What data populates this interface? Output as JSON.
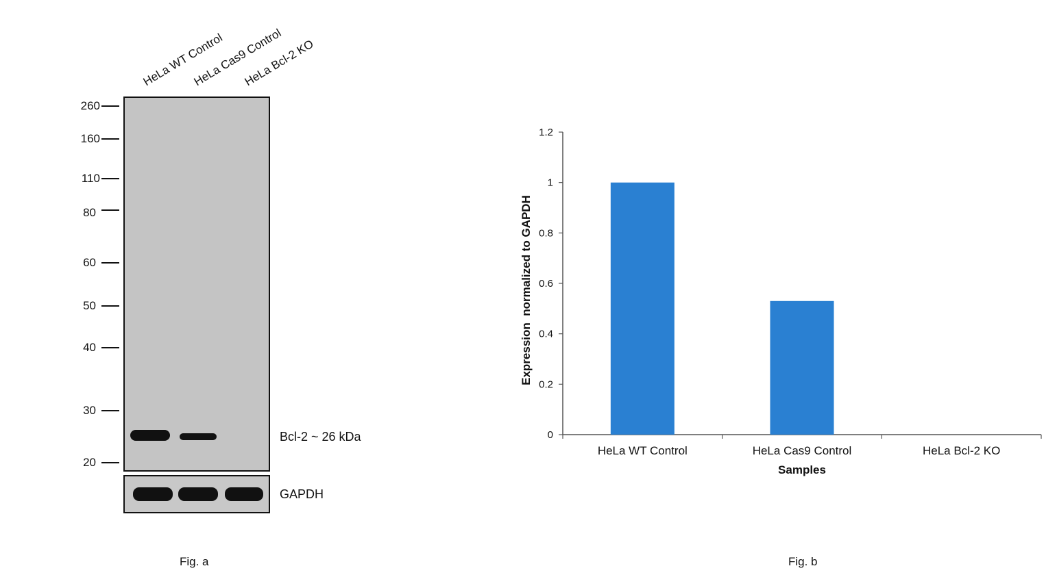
{
  "figure_a": {
    "lane_labels": [
      "HeLa WT Control",
      "HeLa Cas9 Control",
      "HeLa Bcl-2 KO"
    ],
    "mw_markers": [
      "260",
      "160",
      "110",
      "80",
      "60",
      "50",
      "40",
      "30",
      "20"
    ],
    "target_band_label": "Bcl-2 ~ 26 kDa",
    "loading_control_label": "GAPDH",
    "caption": "Fig. a",
    "band_intensity_relative": [
      1.0,
      0.53,
      0.0
    ]
  },
  "figure_b": {
    "caption": "Fig. b"
  },
  "chart_data": {
    "type": "bar",
    "categories": [
      "HeLa WT Control",
      "HeLa Cas9 Control",
      "HeLa Bcl-2 KO"
    ],
    "values": [
      1.0,
      0.53,
      0.0
    ],
    "title": "",
    "xlabel": "Samples",
    "ylabel": "Expression  normalized to GAPDH",
    "ylim": [
      0,
      1.2
    ],
    "yticks": [
      "0",
      "0.2",
      "0.4",
      "0.6",
      "0.8",
      "1",
      "1.2"
    ],
    "grid": false,
    "bar_color": "#2a80d2"
  }
}
